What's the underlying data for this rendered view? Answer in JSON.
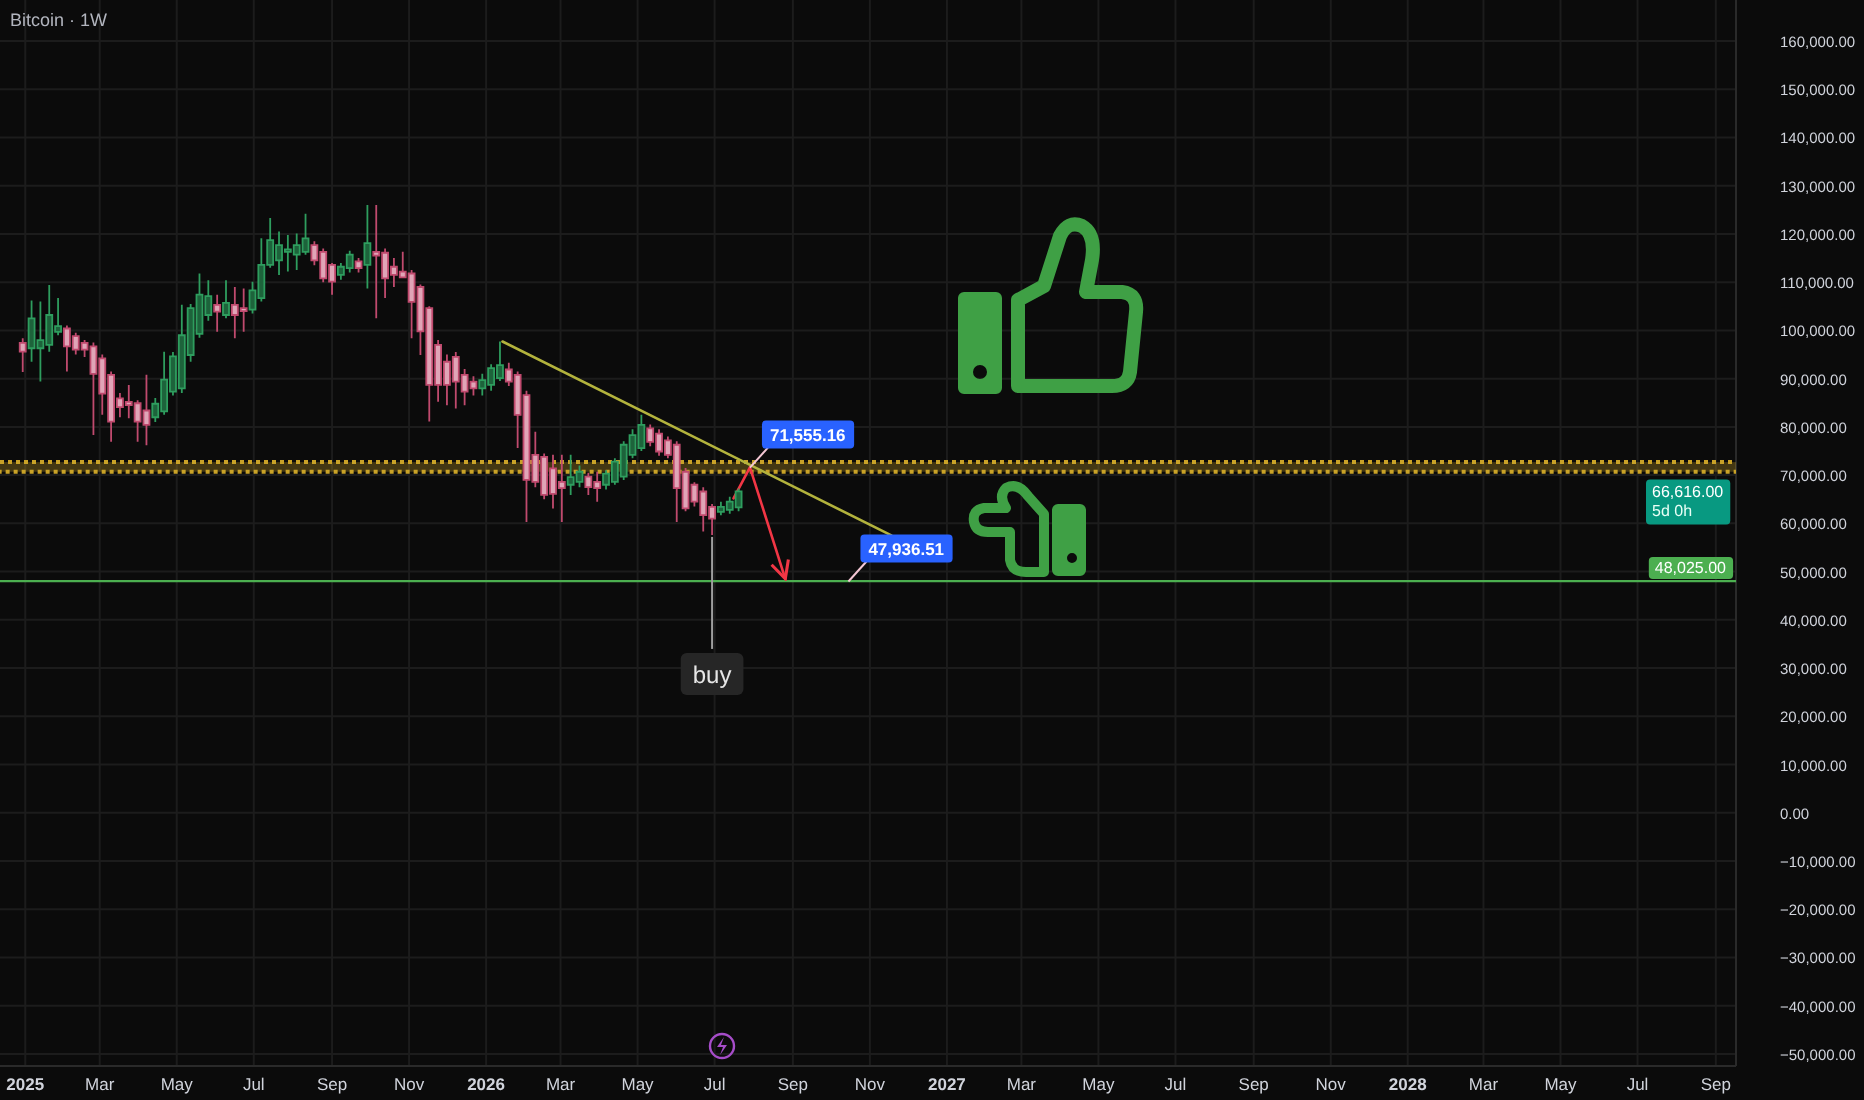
{
  "chart_data": {
    "type": "candlestick",
    "title": "Bitcoin · 1W",
    "x": [
      "2024-12-30",
      "2025-01-06",
      "2025-01-13",
      "2025-01-20",
      "2025-01-27",
      "2025-02-03",
      "2025-02-10",
      "2025-02-17",
      "2025-02-24",
      "2025-03-03",
      "2025-03-10",
      "2025-03-17",
      "2025-03-24",
      "2025-03-31",
      "2025-04-07",
      "2025-04-14",
      "2025-04-21",
      "2025-04-28",
      "2025-05-05",
      "2025-05-12",
      "2025-05-19",
      "2025-05-26",
      "2025-06-02",
      "2025-06-09",
      "2025-06-16",
      "2025-06-23",
      "2025-06-30",
      "2025-07-07",
      "2025-07-14",
      "2025-07-21",
      "2025-07-28",
      "2025-08-04",
      "2025-08-11",
      "2025-08-18",
      "2025-08-25",
      "2025-09-01",
      "2025-09-08",
      "2025-09-15",
      "2025-09-22",
      "2025-09-29",
      "2025-10-06",
      "2025-10-13",
      "2025-10-20",
      "2025-10-27",
      "2025-11-03",
      "2025-11-10",
      "2025-11-17",
      "2025-11-24",
      "2025-12-01",
      "2025-12-08",
      "2025-12-15",
      "2025-12-22",
      "2025-12-29",
      "2026-01-05",
      "2026-01-12",
      "2026-01-19",
      "2026-01-26",
      "2026-02-02",
      "2026-02-09",
      "2026-02-16",
      "2026-02-23",
      "2026-03-02",
      "2026-03-09",
      "2026-03-16",
      "2026-03-23",
      "2026-03-30",
      "2026-04-06",
      "2026-04-13",
      "2026-04-20",
      "2026-04-27",
      "2026-05-04",
      "2026-05-11",
      "2026-05-18",
      "2026-05-25",
      "2026-06-01",
      "2026-06-08",
      "2026-06-15",
      "2026-06-22",
      "2026-06-29",
      "2026-07-06",
      "2026-07-13",
      "2026-07-20"
    ],
    "ohlc": [
      [
        97400,
        98400,
        91400,
        95600
      ],
      [
        96300,
        106200,
        93500,
        102500
      ],
      [
        96300,
        106000,
        89400,
        98000
      ],
      [
        97000,
        109400,
        95600,
        103200
      ],
      [
        99700,
        106700,
        99000,
        100900
      ],
      [
        100400,
        101000,
        91500,
        96700
      ],
      [
        98800,
        99500,
        95000,
        96000
      ],
      [
        97400,
        98000,
        94500,
        96000
      ],
      [
        96700,
        97500,
        78300,
        91000
      ],
      [
        94200,
        95000,
        82500,
        86900
      ],
      [
        90800,
        91500,
        76900,
        81100
      ],
      [
        85900,
        87000,
        82000,
        84100
      ],
      [
        85200,
        88700,
        81800,
        84500
      ],
      [
        84900,
        85500,
        76900,
        81100
      ],
      [
        83400,
        90800,
        76200,
        80400
      ],
      [
        82000,
        86000,
        81000,
        84800
      ],
      [
        83200,
        95600,
        82500,
        89800
      ],
      [
        87300,
        95500,
        86500,
        94600
      ],
      [
        88000,
        105300,
        87000,
        99000
      ],
      [
        94900,
        105500,
        93500,
        104600
      ],
      [
        99300,
        111800,
        98500,
        107400
      ],
      [
        103200,
        110400,
        102000,
        107100
      ],
      [
        105300,
        107400,
        99700,
        103900
      ],
      [
        103200,
        110400,
        102500,
        105700
      ],
      [
        105300,
        109000,
        98400,
        103200
      ],
      [
        104600,
        108700,
        99700,
        104000
      ],
      [
        104300,
        110100,
        103500,
        108300
      ],
      [
        106700,
        119100,
        106000,
        113600
      ],
      [
        113600,
        123300,
        113000,
        118700
      ],
      [
        114500,
        120500,
        111500,
        117700
      ],
      [
        116300,
        119800,
        112200,
        116800
      ],
      [
        115700,
        120100,
        112500,
        117700
      ],
      [
        116300,
        124200,
        115700,
        119100
      ],
      [
        117700,
        118500,
        113500,
        114500
      ],
      [
        116300,
        117000,
        110000,
        110800
      ],
      [
        113600,
        114000,
        107400,
        110100
      ],
      [
        111500,
        114000,
        110500,
        113200
      ],
      [
        112900,
        116500,
        112000,
        115700
      ],
      [
        114300,
        115000,
        112000,
        112900
      ],
      [
        113600,
        126000,
        108700,
        118100
      ],
      [
        116300,
        126000,
        102500,
        115500
      ],
      [
        116100,
        117000,
        106700,
        110800
      ],
      [
        113200,
        115000,
        109000,
        111500
      ],
      [
        112200,
        116300,
        110800,
        111000
      ],
      [
        111800,
        112500,
        98400,
        105900
      ],
      [
        109000,
        109500,
        94900,
        99800
      ],
      [
        104600,
        105000,
        81100,
        88700
      ],
      [
        97000,
        98000,
        85200,
        88700
      ],
      [
        93500,
        95000,
        84500,
        88700
      ],
      [
        94500,
        95500,
        83800,
        89400
      ],
      [
        90800,
        92000,
        84500,
        87300
      ],
      [
        89400,
        90500,
        86500,
        88000
      ],
      [
        88000,
        91000,
        86500,
        89700
      ],
      [
        88700,
        93000,
        87500,
        92200
      ],
      [
        90100,
        97700,
        89500,
        92800
      ],
      [
        91900,
        93300,
        88500,
        89400
      ],
      [
        90800,
        91500,
        75600,
        82500
      ],
      [
        86600,
        87500,
        60300,
        69000
      ],
      [
        74200,
        79000,
        67500,
        68600
      ],
      [
        73800,
        74500,
        65000,
        65900
      ],
      [
        71400,
        74200,
        63100,
        66100
      ],
      [
        68600,
        74200,
        60300,
        67300
      ],
      [
        68000,
        74200,
        65900,
        69600
      ],
      [
        68600,
        72000,
        67500,
        70700
      ],
      [
        69700,
        70500,
        65900,
        67500
      ],
      [
        68600,
        70700,
        64500,
        67300
      ],
      [
        68000,
        71000,
        67000,
        70300
      ],
      [
        68600,
        73500,
        68000,
        72800
      ],
      [
        69700,
        77000,
        69000,
        76300
      ],
      [
        74200,
        79500,
        73500,
        78300
      ],
      [
        75600,
        82500,
        75000,
        80400
      ],
      [
        79700,
        80500,
        76000,
        76900
      ],
      [
        78600,
        79500,
        74000,
        74900
      ],
      [
        77200,
        78000,
        73500,
        74200
      ],
      [
        76300,
        77000,
        60300,
        67300
      ],
      [
        70700,
        71500,
        62500,
        63100
      ],
      [
        68000,
        68500,
        63500,
        64500
      ],
      [
        66600,
        67500,
        58300,
        61700
      ],
      [
        63400,
        64000,
        57600,
        61000
      ],
      [
        62400,
        64500,
        61700,
        63400
      ],
      [
        62800,
        65500,
        62000,
        64500
      ],
      [
        63300,
        67200,
        62500,
        66616
      ]
    ],
    "colors": [
      "#c04a6e",
      "#2e9d5e",
      "#2e9d5e",
      "#2e9d5e",
      "#2e9d5e",
      "#c04a6e",
      "#c04a6e",
      "#c04a6e",
      "#c04a6e",
      "#c04a6e",
      "#c04a6e",
      "#c04a6e",
      "#c04a6e",
      "#c04a6e",
      "#c04a6e",
      "#2e9d5e",
      "#2e9d5e",
      "#2e9d5e",
      "#2e9d5e",
      "#2e9d5e",
      "#2e9d5e",
      "#2e9d5e",
      "#c04a6e",
      "#2e9d5e",
      "#c04a6e",
      "#c04a6e",
      "#2e9d5e",
      "#2e9d5e",
      "#2e9d5e",
      "#2e9d5e",
      "#2e9d5e",
      "#2e9d5e",
      "#2e9d5e",
      "#c04a6e",
      "#c04a6e",
      "#c04a6e",
      "#2e9d5e",
      "#2e9d5e",
      "#c04a6e",
      "#2e9d5e",
      "#c04a6e",
      "#c04a6e",
      "#c04a6e",
      "#c04a6e",
      "#c04a6e",
      "#c04a6e",
      "#c04a6e",
      "#c04a6e",
      "#c04a6e",
      "#c04a6e",
      "#c04a6e",
      "#c04a6e",
      "#2e9d5e",
      "#2e9d5e",
      "#2e9d5e",
      "#c04a6e",
      "#c04a6e",
      "#c04a6e",
      "#c04a6e",
      "#c04a6e",
      "#c04a6e",
      "#c04a6e",
      "#2e9d5e",
      "#2e9d5e",
      "#c04a6e",
      "#c04a6e",
      "#2e9d5e",
      "#2e9d5e",
      "#2e9d5e",
      "#2e9d5e",
      "#2e9d5e",
      "#c04a6e",
      "#c04a6e",
      "#c04a6e",
      "#c04a6e",
      "#c04a6e",
      "#c04a6e",
      "#c04a6e",
      "#c04a6e",
      "#2e9d5e",
      "#2e9d5e",
      "#2e9d5e"
    ],
    "series": [
      {
        "type": "line",
        "color": "#b3b33d",
        "x": [
          "2026-01-14",
          "2026-11-18"
        ],
        "values": [
          97700,
          57500
        ]
      },
      {
        "type": "line",
        "color": "#f23645",
        "x": [
          "2026-07-16",
          "2026-07-29",
          "2026-08-26"
        ],
        "values": [
          65200,
          71600,
          48500
        ]
      }
    ],
    "xlim": [
      "2024-12-12",
      "2028-09-17"
    ],
    "xticks": [
      {
        "value": "2025-01-01",
        "label": "2025"
      },
      {
        "value": "2025-03-01",
        "label": "Mar"
      },
      {
        "value": "2025-05-01",
        "label": "May"
      },
      {
        "value": "2025-07-01",
        "label": "Jul"
      },
      {
        "value": "2025-09-01",
        "label": "Sep"
      },
      {
        "value": "2025-11-01",
        "label": "Nov"
      },
      {
        "value": "2026-01-01",
        "label": "2026"
      },
      {
        "value": "2026-03-01",
        "label": "Mar"
      },
      {
        "value": "2026-05-01",
        "label": "May"
      },
      {
        "value": "2026-07-01",
        "label": "Jul"
      },
      {
        "value": "2026-09-01",
        "label": "Sep"
      },
      {
        "value": "2026-11-01",
        "label": "Nov"
      },
      {
        "value": "2027-01-01",
        "label": "2027"
      },
      {
        "value": "2027-03-01",
        "label": "Mar"
      },
      {
        "value": "2027-05-01",
        "label": "May"
      },
      {
        "value": "2027-07-01",
        "label": "Jul"
      },
      {
        "value": "2027-09-01",
        "label": "Sep"
      },
      {
        "value": "2027-11-01",
        "label": "Nov"
      },
      {
        "value": "2028-01-01",
        "label": "2028"
      },
      {
        "value": "2028-03-01",
        "label": "Mar"
      },
      {
        "value": "2028-05-01",
        "label": "May"
      },
      {
        "value": "2028-07-01",
        "label": "Jul"
      },
      {
        "value": "2028-09-01",
        "label": "Sep"
      }
    ],
    "ylim": [
      -52500,
      168500
    ],
    "yticks": [
      {
        "value": -50000,
        "label": "−50,000.00"
      },
      {
        "value": -40000,
        "label": "−40,000.00"
      },
      {
        "value": -30000,
        "label": "−30,000.00"
      },
      {
        "value": -20000,
        "label": "−20,000.00"
      },
      {
        "value": -10000,
        "label": "−10,000.00"
      },
      {
        "value": 0,
        "label": "0.00"
      },
      {
        "value": 10000,
        "label": "10,000.00"
      },
      {
        "value": 20000,
        "label": "20,000.00"
      },
      {
        "value": 30000,
        "label": "30,000.00"
      },
      {
        "value": 40000,
        "label": "40,000.00"
      },
      {
        "value": 50000,
        "label": "50,000.00"
      },
      {
        "value": 60000,
        "label": "60,000.00"
      },
      {
        "value": 70000,
        "label": "70,000.00"
      },
      {
        "value": 80000,
        "label": "80,000.00"
      },
      {
        "value": 90000,
        "label": "90,000.00"
      },
      {
        "value": 100000,
        "label": "100,000.00"
      },
      {
        "value": 110000,
        "label": "110,000.00"
      },
      {
        "value": 120000,
        "label": "120,000.00"
      },
      {
        "value": 130000,
        "label": "130,000.00"
      },
      {
        "value": 140000,
        "label": "140,000.00"
      },
      {
        "value": 150000,
        "label": "150,000.00"
      },
      {
        "value": 160000,
        "label": "160,000.00"
      }
    ],
    "grid": true,
    "ref_lines": [
      {
        "axis": "y",
        "value": 48025,
        "label": "48,025.00",
        "color": "#4caf50"
      }
    ],
    "bands": [
      {
        "axis": "y",
        "from": 70700,
        "to": 72700,
        "color": "#c9a227"
      }
    ],
    "annotations": [
      {
        "text": "71,555.16",
        "x": "2026-07-29",
        "y": 71555.16
      },
      {
        "text": "47,936.51",
        "x": "2026-10-15",
        "y": 47936.51
      },
      {
        "text": "buy",
        "x": "2026-06-29",
        "y": 57600
      },
      "66,616.00",
      "5d 0h"
    ]
  }
}
